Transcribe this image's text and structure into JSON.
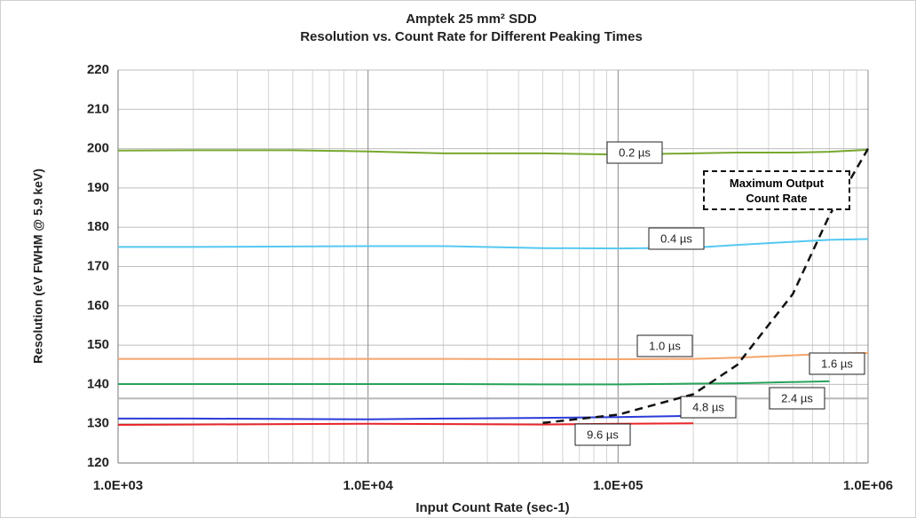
{
  "chart_data": {
    "type": "line",
    "title": "Amptek 25 mm² SDD",
    "subtitle": "Resolution vs. Count Rate for Different Peaking Times",
    "x_label": "Input Count Rate (sec-1)",
    "y_label": "Resolution (eV FWHM @ 5.9 keV)",
    "annotation": "Maximum Output Count Rate",
    "x": [
      1000,
      2000,
      5000,
      10000,
      20000,
      50000,
      100000,
      200000,
      300000,
      500000,
      700000,
      1000000
    ],
    "xlog": true,
    "xlim": [
      1000,
      1000000
    ],
    "xticks": [
      {
        "value": 1000,
        "label": "1.0E+03"
      },
      {
        "value": 10000,
        "label": "1.0E+04"
      },
      {
        "value": 100000,
        "label": "1.0E+05"
      },
      {
        "value": 1000000,
        "label": "1.0E+06"
      }
    ],
    "ylim": [
      120,
      220
    ],
    "yticks": [
      120,
      130,
      140,
      150,
      160,
      170,
      180,
      190,
      200,
      210,
      220
    ],
    "grid": true,
    "series": [
      {
        "name": "0.2 µs",
        "color": "#77a82e",
        "values": [
          199.5,
          199.6,
          199.6,
          199.3,
          198.8,
          198.8,
          198.5,
          198.8,
          199,
          199,
          199.2,
          199.7
        ]
      },
      {
        "name": "0.4 µs",
        "color": "#55c8f2",
        "values": [
          175,
          175,
          175.1,
          175.2,
          175.2,
          174.7,
          174.6,
          174.8,
          175.5,
          176.3,
          176.8,
          177
        ]
      },
      {
        "name": "1.0 µs",
        "color": "#f5a46a",
        "values": [
          146.5,
          146.5,
          146.5,
          146.5,
          146.5,
          146.4,
          146.4,
          146.5,
          146.8,
          147.4,
          147.8,
          148
        ]
      },
      {
        "name": "1.6 µs",
        "color": "#27a35a",
        "values": [
          140.1,
          140.1,
          140.1,
          140.1,
          140.1,
          140,
          140,
          140.2,
          140.3,
          140.6,
          140.8,
          null
        ]
      },
      {
        "name": "2.4 µs",
        "color": "#b8b8b8",
        "values": [
          136.4,
          136.4,
          136.4,
          136.4,
          136.4,
          136.4,
          136.4,
          136.4,
          136.4,
          136.4,
          136.4,
          136.4
        ]
      },
      {
        "name": "4.8 µs",
        "color": "#2b3bd8",
        "values": [
          131.3,
          131.3,
          131.2,
          131.1,
          131.3,
          131.5,
          131.7,
          132,
          null,
          null,
          null,
          null
        ]
      },
      {
        "name": "9.6 µs",
        "color": "#e8262a",
        "values": [
          129.7,
          129.8,
          129.9,
          130,
          129.9,
          129.8,
          130,
          130.1,
          null,
          null,
          null,
          null
        ]
      },
      {
        "name": "Maximum Output Count Rate",
        "color": "#111111",
        "style": "dashed",
        "values": [
          null,
          null,
          null,
          null,
          null,
          130.2,
          132.3,
          137.5,
          145,
          163,
          183,
          200
        ]
      }
    ]
  }
}
